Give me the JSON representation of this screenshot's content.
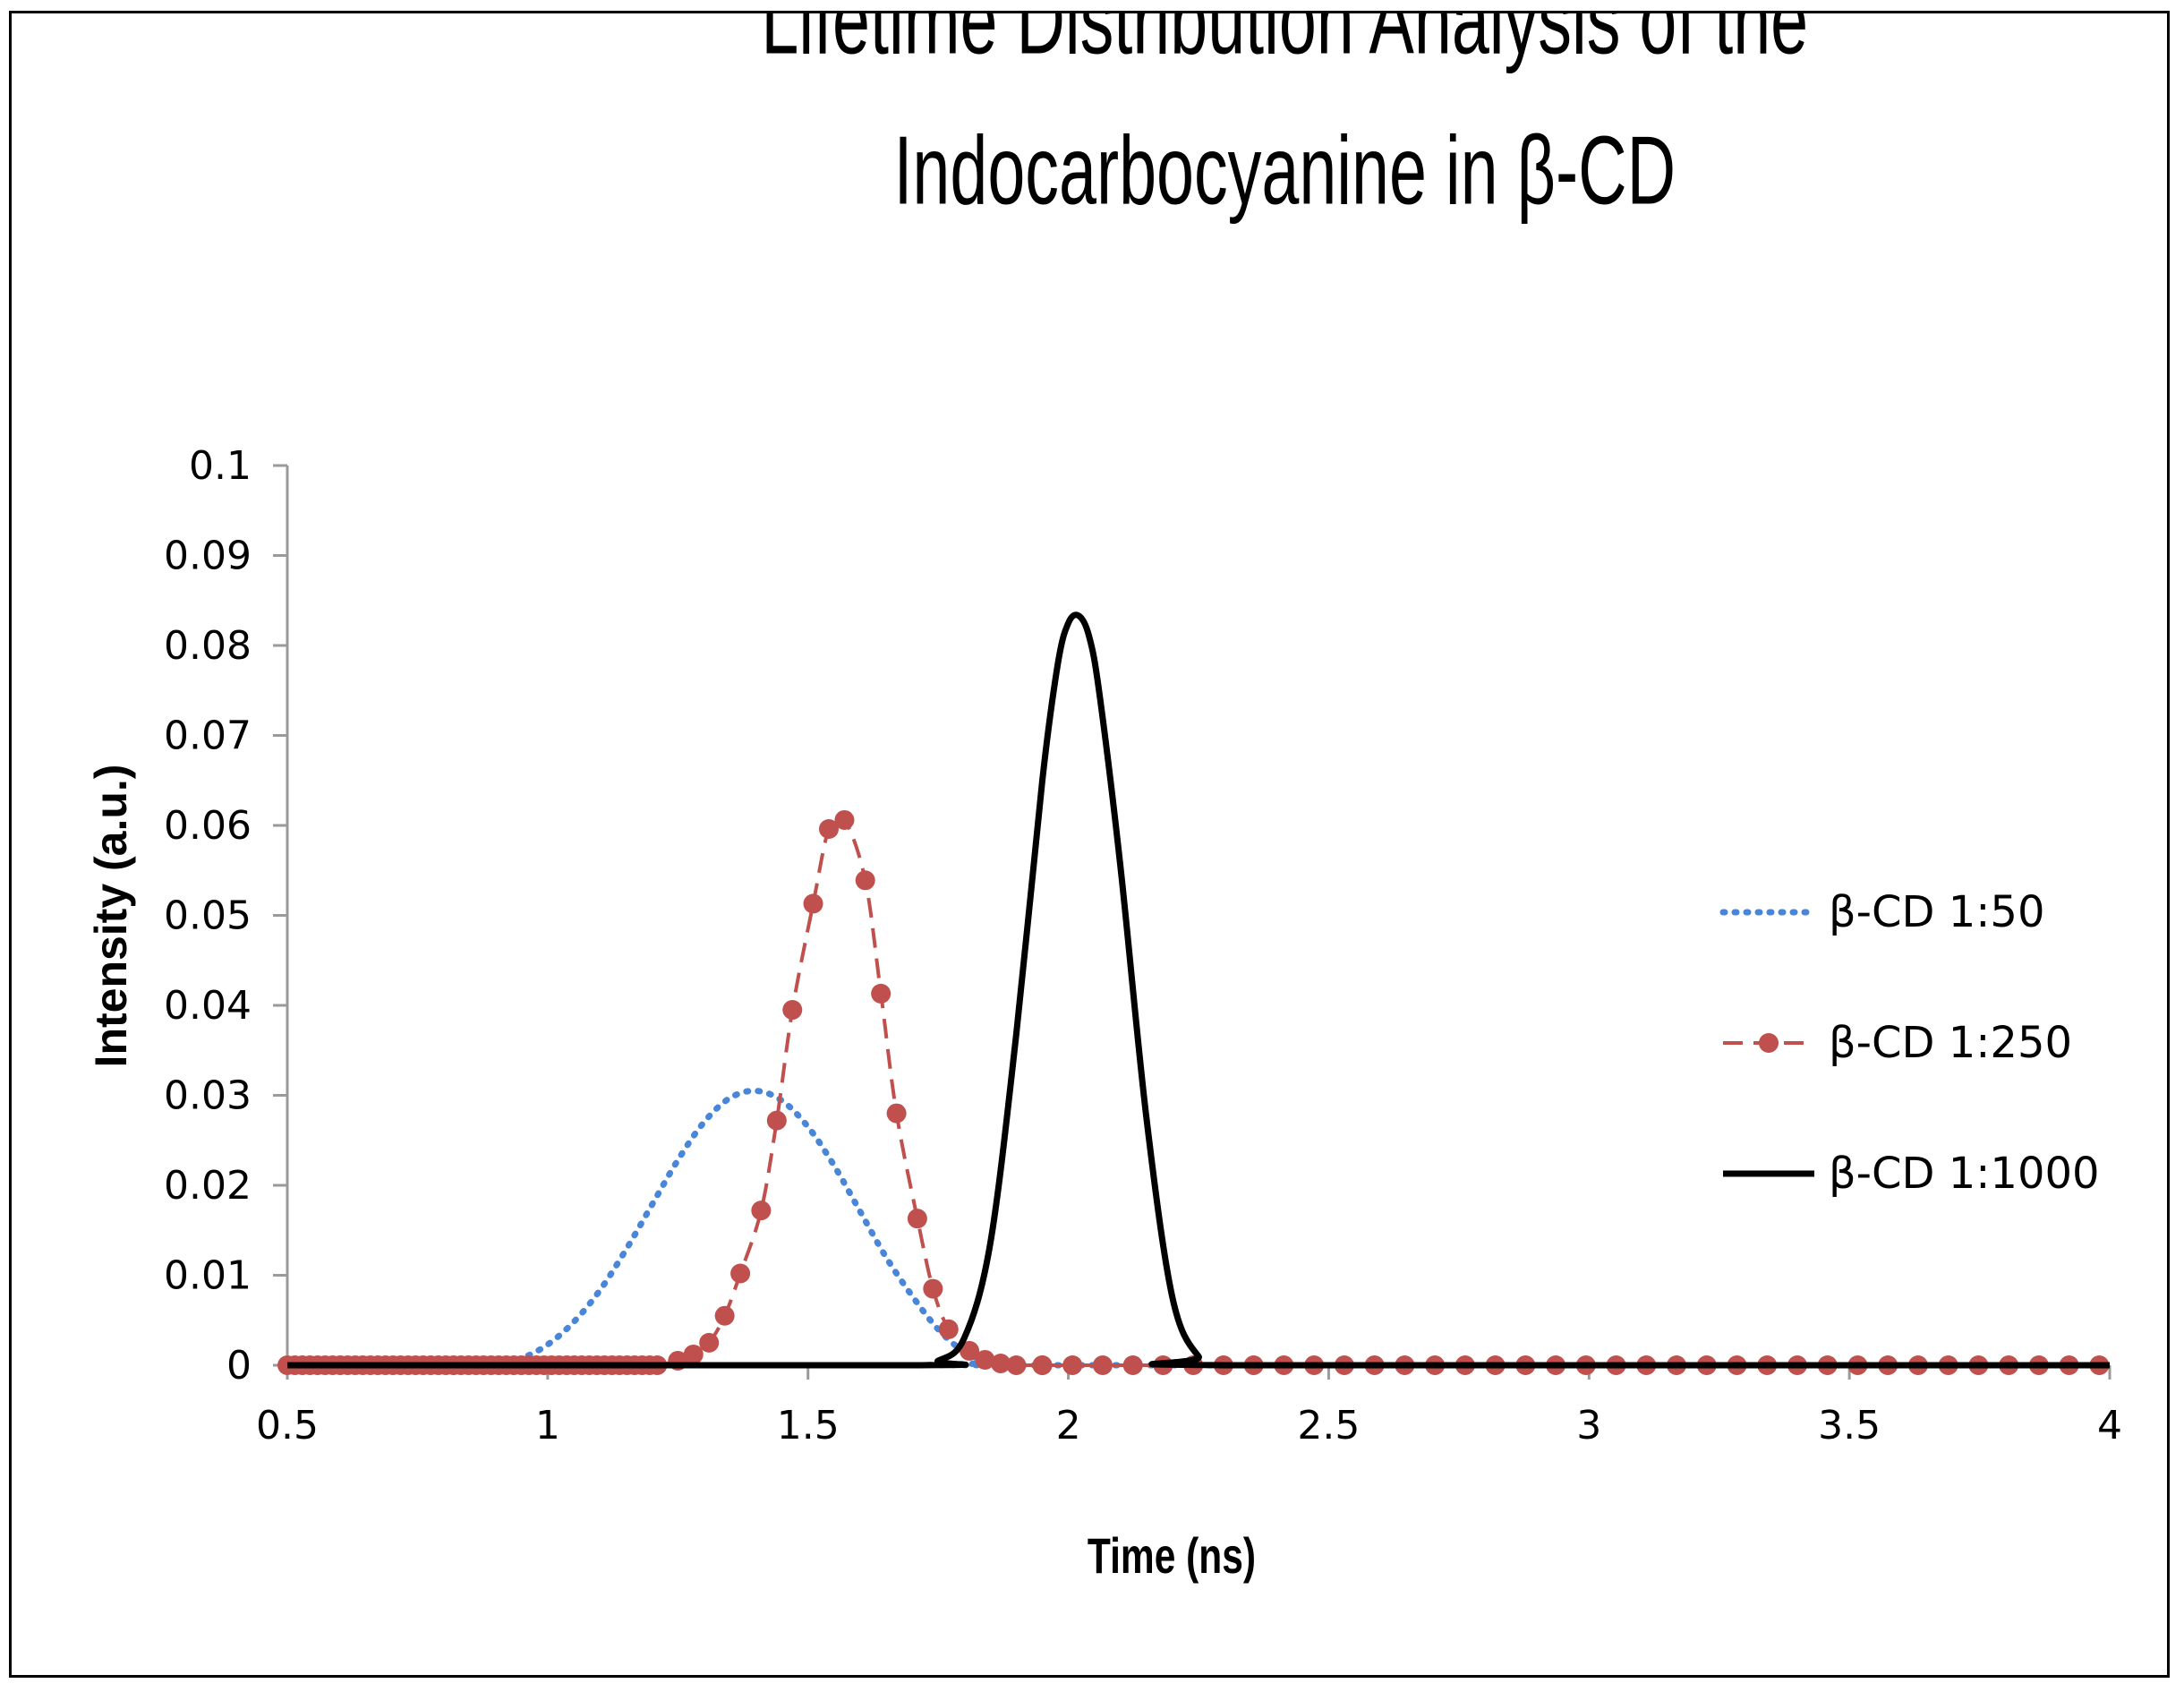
{
  "chart_data": {
    "type": "line",
    "title_lines": [
      "Lifetime Distribution Analysis of the",
      "Indocarbocyanine in β-CD"
    ],
    "xlabel": "Time (ns)",
    "ylabel": "Intensity (a.u.)",
    "xlim": [
      0.5,
      4
    ],
    "ylim": [
      0,
      0.1
    ],
    "x_ticks": [
      "0.5",
      "1",
      "1.5",
      "2",
      "2.5",
      "3",
      "3.5",
      "4"
    ],
    "y_ticks": [
      "0",
      "0.01",
      "0.02",
      "0.03",
      "0.04",
      "0.05",
      "0.06",
      "0.07",
      "0.08",
      "0.09",
      "0.1"
    ],
    "grid": false,
    "legend_position": "right",
    "series": [
      {
        "name": "β-CD 1:50",
        "style": "dotted",
        "color": "#4a86d8",
        "x": [
          0.5,
          0.9,
          0.95,
          1.0,
          1.05,
          1.1,
          1.15,
          1.2,
          1.25,
          1.3,
          1.35,
          1.4,
          1.45,
          1.5,
          1.55,
          1.6,
          1.65,
          1.7,
          1.75,
          1.8,
          1.85,
          1.9,
          4.0
        ],
        "values": [
          0.0,
          0.0003,
          0.0008,
          0.0023,
          0.0048,
          0.0083,
          0.0128,
          0.0178,
          0.0228,
          0.027,
          0.0297,
          0.0305,
          0.0294,
          0.0265,
          0.0222,
          0.0171,
          0.012,
          0.0077,
          0.004,
          0.0015,
          0.0003,
          0.0,
          0.0
        ]
      },
      {
        "name": "β-CD 1:250",
        "style": "dashed-markers",
        "color": "#c0504d",
        "x": [
          0.5,
          0.6,
          0.7,
          0.8,
          0.9,
          1.0,
          1.1,
          1.2,
          1.25,
          1.28,
          1.31,
          1.34,
          1.37,
          1.41,
          1.44,
          1.47,
          1.51,
          1.54,
          1.57,
          1.61,
          1.64,
          1.67,
          1.71,
          1.74,
          1.77,
          1.81,
          1.84,
          1.87,
          1.9,
          1.95,
          2.0,
          2.1,
          2.2,
          2.3,
          2.5,
          3.0,
          3.5,
          4.0
        ],
        "values": [
          0.0,
          0.0,
          0.0,
          0.0,
          0.0,
          0.0,
          0.0,
          0.0,
          0.0005,
          0.0012,
          0.0025,
          0.0055,
          0.0102,
          0.0172,
          0.0272,
          0.0395,
          0.0513,
          0.0596,
          0.0606,
          0.0539,
          0.0413,
          0.028,
          0.0163,
          0.0085,
          0.004,
          0.0016,
          0.0006,
          0.0002,
          0.0,
          0.0,
          0.0,
          0.0,
          0.0,
          0.0,
          0.0,
          0.0,
          0.0,
          0.0
        ]
      },
      {
        "name": "β-CD 1:1000",
        "style": "solid",
        "color": "#000000",
        "x": [
          0.5,
          1.7,
          1.75,
          1.8,
          1.85,
          1.9,
          1.95,
          1.98,
          2.0,
          2.02,
          2.04,
          2.06,
          2.1,
          2.15,
          2.2,
          2.25,
          2.3,
          4.0
        ],
        "values": [
          0.0,
          0.0,
          0.0005,
          0.003,
          0.0135,
          0.0368,
          0.065,
          0.078,
          0.0825,
          0.0833,
          0.081,
          0.0745,
          0.0555,
          0.0275,
          0.0075,
          0.001,
          0.0,
          0.0
        ]
      }
    ]
  }
}
